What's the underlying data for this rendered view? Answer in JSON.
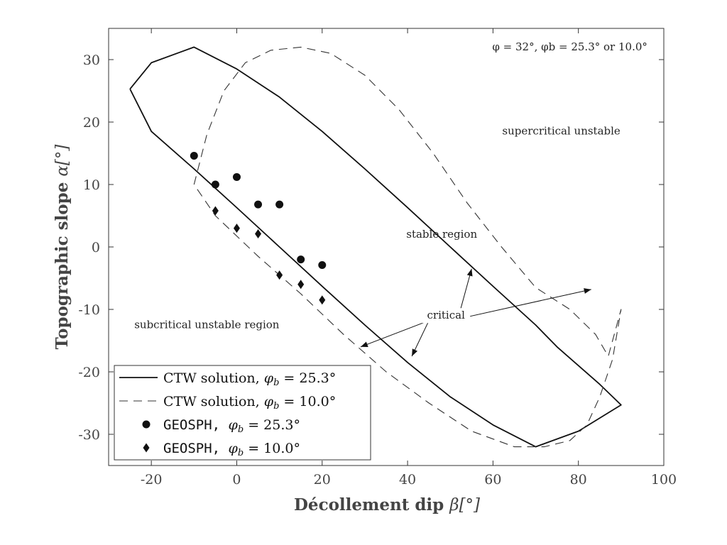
{
  "chart_data": {
    "type": "line",
    "title": "",
    "xlabel": "Décollement dip β[°]",
    "xlabel_parts": {
      "text": "Décollement dip",
      "symbol": "β[°]"
    },
    "ylabel": "Topographic slope α[°]",
    "ylabel_parts": {
      "text": "Topographic slope",
      "symbol": "α[°]"
    },
    "xlim": [
      -30,
      100
    ],
    "ylim": [
      -35,
      35
    ],
    "xticks": [
      -20,
      0,
      20,
      40,
      60,
      80,
      100
    ],
    "yticks": [
      -30,
      -20,
      -10,
      0,
      10,
      20,
      30
    ],
    "grid": false,
    "legend_position": "bottom-left",
    "series": [
      {
        "name": "CTW solution, φb = 25.3°",
        "legend_parts": {
          "text": "CTW solution,",
          "sym": "φ",
          "sub": "b",
          "val": " = 25.3°"
        },
        "style": "solid",
        "x": [
          -25,
          -20,
          -10,
          0,
          10,
          20,
          30,
          40,
          50,
          60,
          70,
          75,
          80,
          85,
          90,
          80,
          70,
          60,
          50,
          40,
          30,
          20,
          10,
          0,
          -10,
          -20,
          -25
        ],
        "y": [
          25.3,
          29.5,
          32.0,
          28.5,
          24.0,
          18.5,
          12.5,
          6.3,
          0.0,
          -6.3,
          -12.5,
          -16.0,
          -19.0,
          -22.0,
          -25.3,
          -29.5,
          -32.0,
          -28.5,
          -24.0,
          -18.5,
          -12.5,
          -6.3,
          0.0,
          6.3,
          12.5,
          18.5,
          25.3
        ]
      },
      {
        "name": "CTW solution, φb = 10.0°",
        "legend_parts": {
          "text": "CTW solution,",
          "sym": "φ",
          "sub": "b",
          "val": " = 10.0°"
        },
        "style": "dashed",
        "x": [
          -10,
          -7,
          -3,
          2,
          8,
          15,
          22,
          30,
          38,
          46,
          54,
          62,
          70,
          78,
          84,
          87,
          90,
          88,
          85,
          82,
          78,
          72,
          65,
          55,
          45,
          35,
          25,
          15,
          5,
          -5,
          -10
        ],
        "y": [
          10.0,
          18.0,
          25.0,
          29.5,
          31.5,
          32.0,
          31.0,
          27.5,
          22.0,
          15.0,
          7.0,
          0.0,
          -6.5,
          -10.0,
          -14.0,
          -17.5,
          -10.0,
          -18.0,
          -24.0,
          -28.5,
          -31.0,
          -32.0,
          -32.0,
          -29.5,
          -25.0,
          -20.0,
          -14.0,
          -7.5,
          -1.5,
          5.0,
          10.0
        ]
      },
      {
        "name": "GEOSPH, φb = 25.3°",
        "legend_parts": {
          "text": "GEOSPH,",
          "sym": "φ",
          "sub": "b",
          "val": " = 25.3°"
        },
        "style": "circle-markers",
        "x": [
          -10,
          -5,
          0,
          5,
          10,
          15,
          20
        ],
        "y": [
          14.6,
          10.0,
          11.2,
          6.8,
          6.8,
          -2.0,
          -2.9
        ]
      },
      {
        "name": "GEOSPH, φb = 10.0°",
        "legend_parts": {
          "text": "GEOSPH,",
          "sym": "φ",
          "sub": "b",
          "val": " = 10.0°"
        },
        "style": "diamond-markers",
        "x": [
          -5,
          0,
          5,
          10,
          15,
          20
        ],
        "y": [
          5.8,
          3.0,
          2.1,
          -4.5,
          -6.0,
          -8.5
        ]
      }
    ],
    "annotations": [
      {
        "id": "params",
        "text": "φ = 32°, φb = 25.3° or 10.0°",
        "x": 78,
        "y": 31.5
      },
      {
        "id": "supercritical",
        "text": "supercritical unstable",
        "x": 76,
        "y": 18
      },
      {
        "id": "stable",
        "text": "stable region",
        "x": 48,
        "y": 1.5
      },
      {
        "id": "subcritical",
        "text": "subcritical unstable region",
        "x": -7,
        "y": -13
      },
      {
        "id": "critical",
        "text": "critical",
        "x": 49,
        "y": -11.5
      }
    ],
    "arrows": [
      {
        "from": [
          45,
          -11.8
        ],
        "to": [
          29,
          -16
        ]
      },
      {
        "from": [
          45,
          -11.8
        ],
        "to": [
          41,
          -17.5
        ]
      },
      {
        "from": [
          52,
          -11.0
        ],
        "to": [
          55,
          -3.5
        ]
      },
      {
        "from": [
          54,
          -11.2
        ],
        "to": [
          83,
          -6.8
        ]
      }
    ]
  }
}
